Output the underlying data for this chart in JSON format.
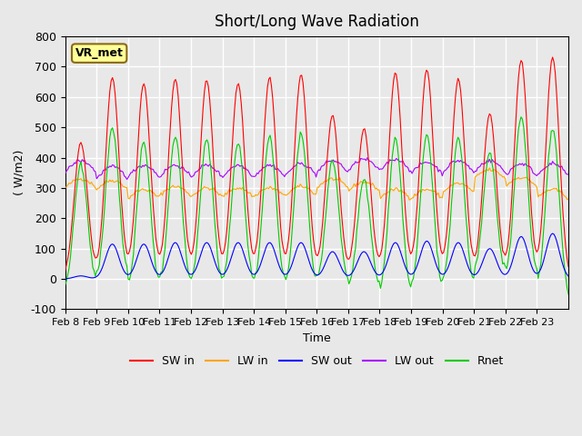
{
  "title": "Short/Long Wave Radiation",
  "xlabel": "Time",
  "ylabel": "( W/m2)",
  "ylim": [
    -100,
    800
  ],
  "x_tick_labels": [
    "Feb 8",
    "Feb 9",
    "Feb 10",
    "Feb 11",
    "Feb 12",
    "Feb 13",
    "Feb 14",
    "Feb 15",
    "Feb 16",
    "Feb 17",
    "Feb 18",
    "Feb 19",
    "Feb 20",
    "Feb 21",
    "Feb 22",
    "Feb 23"
  ],
  "bg_color": "#e8e8e8",
  "plot_bg_color": "#e8e8e8",
  "legend_items": [
    "SW in",
    "LW in",
    "SW out",
    "LW out",
    "Rnet"
  ],
  "legend_colors": [
    "#ff0000",
    "#ffa500",
    "#0000ff",
    "#aa00ff",
    "#00cc00"
  ],
  "label_box_text": "VR_met",
  "label_box_bg": "#ffff99",
  "label_box_edge": "#8b6914",
  "grid_color": "#ffffff",
  "series_colors": {
    "SW_in": "#ff0000",
    "LW_in": "#ffa500",
    "SW_out": "#0000ff",
    "LW_out": "#aa00ff",
    "Rnet": "#00cc00"
  },
  "n_days": 16,
  "sw_peaks": [
    450,
    665,
    645,
    660,
    655,
    645,
    665,
    675,
    540,
    495,
    680,
    690,
    660,
    545,
    720,
    730
  ],
  "sw_out_peaks": [
    10,
    115,
    115,
    120,
    120,
    120,
    120,
    120,
    90,
    90,
    120,
    125,
    120,
    100,
    140,
    150
  ],
  "lw_base": [
    300,
    295,
    265,
    275,
    270,
    270,
    270,
    275,
    300,
    290,
    265,
    265,
    285,
    330,
    305,
    265
  ],
  "lw_out_base": [
    350,
    330,
    335,
    335,
    335,
    335,
    335,
    340,
    350,
    355,
    355,
    345,
    350,
    350,
    340,
    340
  ],
  "yticks": [
    -100,
    0,
    100,
    200,
    300,
    400,
    500,
    600,
    700,
    800
  ]
}
